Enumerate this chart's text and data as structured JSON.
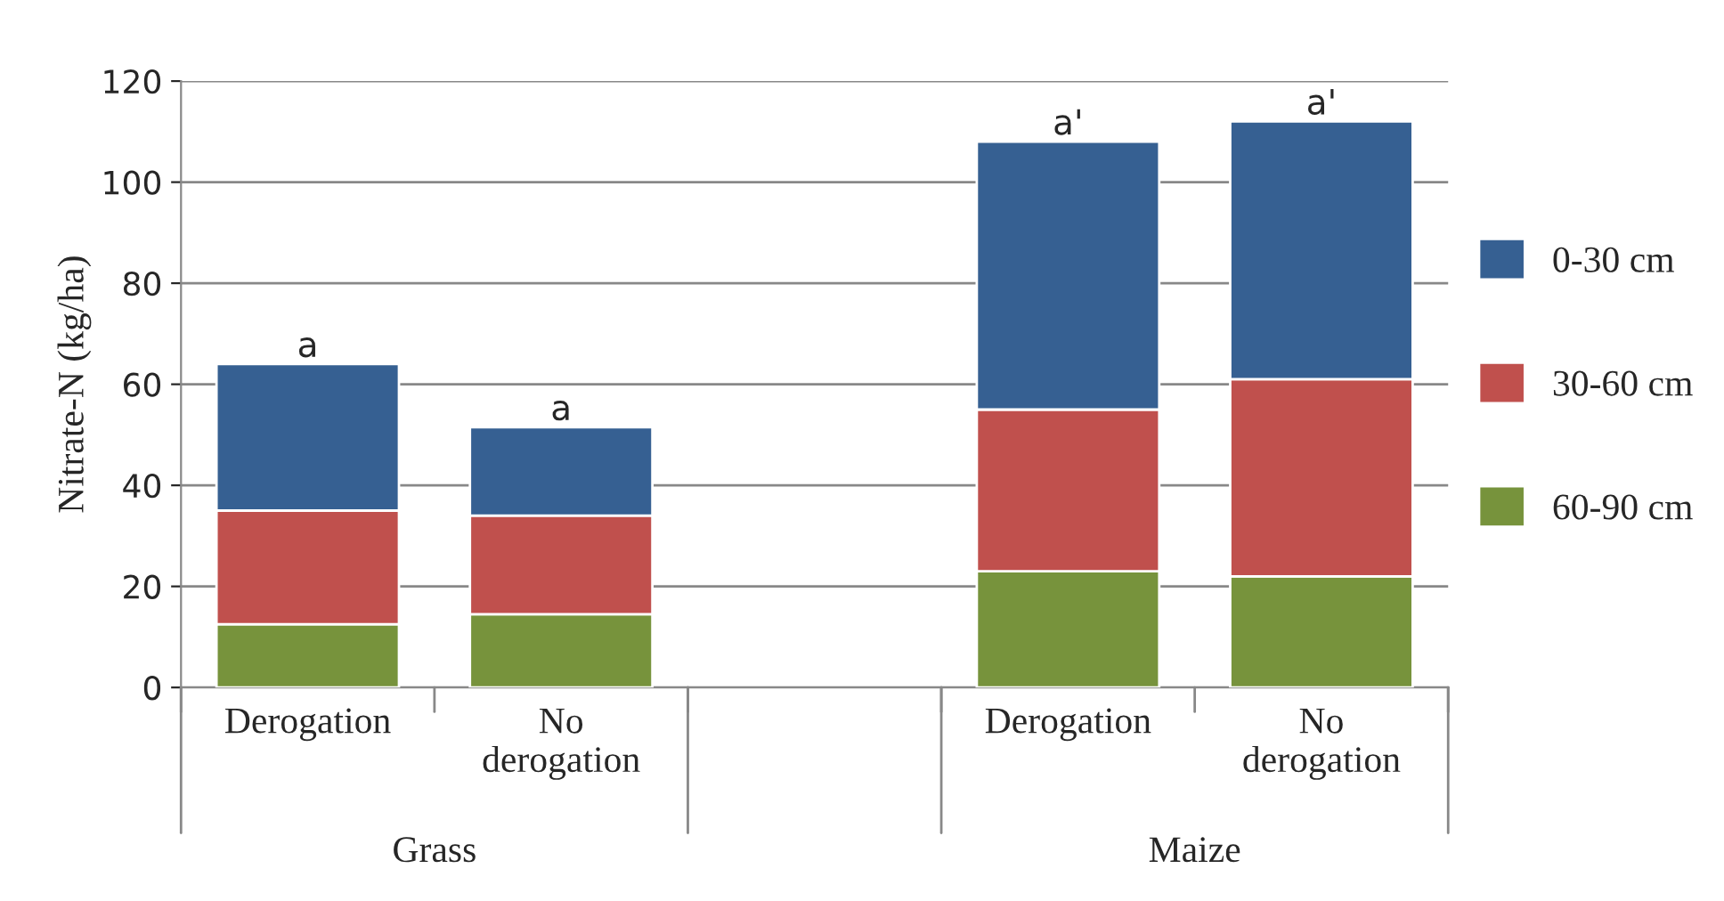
{
  "chart_data": {
    "type": "bar",
    "stacked": true,
    "categories": [
      "Derogation",
      "No\nderogation",
      null,
      "Derogation",
      "No\nderogation"
    ],
    "ylabel": "Nitrate-N (kg/ha)",
    "ylim": [
      0,
      120
    ],
    "yticks": [
      0,
      20,
      40,
      60,
      80,
      100,
      120
    ],
    "grid": "y",
    "legend": "right",
    "series": [
      {
        "name": "60-90 cm",
        "color": "#77933c",
        "values": [
          12.5,
          14.5,
          null,
          23,
          22
        ]
      },
      {
        "name": "30-60 cm",
        "color": "#c0504d",
        "values": [
          22.5,
          19.5,
          null,
          32,
          39
        ]
      },
      {
        "name": "0-30 cm",
        "color": "#366092",
        "values": [
          29,
          17.5,
          null,
          53,
          51
        ]
      }
    ],
    "annotations": [
      "Grass",
      "Maize",
      "a",
      "a",
      "a'",
      "a'"
    ]
  }
}
